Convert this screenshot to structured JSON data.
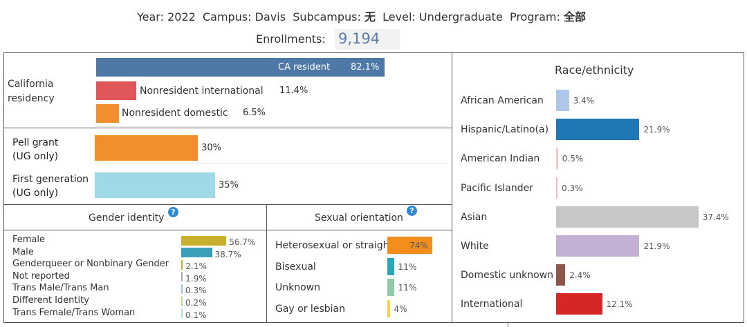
{
  "header": {
    "year_label": "Year:",
    "year": "2022",
    "campus_label": "Campus:",
    "campus": "Davis",
    "subcampus_label": "Subcampus:",
    "subcampus": "无",
    "level_label": "Level:",
    "level": "Undergraduate",
    "program_label": "Program:",
    "program": "全部",
    "enrollments_label": "Enrollments:",
    "enrollments": "9,194"
  },
  "colors": {
    "ca_resident": "#4e79a7",
    "nonres_intl": "#e15759",
    "nonres_dom": "#f28e2b",
    "pell": "#f28e2b",
    "firstgen": "#a0d8e8",
    "race": [
      "#aec7e8",
      "#1f77b4",
      "#f7c6c7",
      "#f7b6d2",
      "#c7c7c7",
      "#c5b0d5",
      "#8c564b",
      "#d62728"
    ],
    "gender": [
      "#c9b02c",
      "#3a9fb8",
      "#c9b02c",
      "#aaaaaa",
      "#9ecae1",
      "#b2df8a",
      "#b0e0e6"
    ],
    "orientation": [
      "#f28e1c",
      "#2aa6b8",
      "#8fc9a8",
      "#f0d54a"
    ]
  },
  "chart_data": [
    {
      "type": "bar",
      "title": "California residency",
      "categories": [
        "CA resident",
        "Nonresident international",
        "Nonresident domestic"
      ],
      "values": [
        82.1,
        11.4,
        6.5
      ],
      "labels": [
        "82.1%",
        "11.4%",
        "6.5%"
      ],
      "xlim": [
        0,
        100
      ]
    },
    {
      "type": "bar",
      "title": "",
      "categories": [
        "Pell grant (UG only)",
        "First generation (UG only)"
      ],
      "values": [
        30,
        35
      ],
      "labels": [
        "30%",
        "35%"
      ],
      "xlim": [
        0,
        100
      ]
    },
    {
      "type": "bar",
      "title": "Gender identity",
      "categories": [
        "Female",
        "Male",
        "Genderqueer or Nonbinary Gender",
        "Not reported",
        "Trans Male/Trans Man",
        "Different Identity",
        "Trans Female/Trans Woman"
      ],
      "values": [
        56.7,
        38.7,
        2.1,
        1.9,
        0.3,
        0.2,
        0.1
      ],
      "labels": [
        "56.7%",
        "38.7%",
        "2.1%",
        "1.9%",
        "0.3%",
        "0.2%",
        "0.1%"
      ],
      "xlim": [
        0,
        100
      ]
    },
    {
      "type": "bar",
      "title": "Sexual orientation",
      "categories": [
        "Heterosexual or straigh",
        "Bisexual",
        "Unknown",
        "Gay or lesbian"
      ],
      "values": [
        74,
        11,
        11,
        4
      ],
      "labels": [
        "74%",
        "11%",
        "11%",
        "4%"
      ],
      "xlim": [
        0,
        100
      ]
    },
    {
      "type": "bar",
      "title": "Race/ethnicity",
      "categories": [
        "African American",
        "Hispanic/Latino(a)",
        "American Indian",
        "Pacific Islander",
        "Asian",
        "White",
        "Domestic unknown",
        "International"
      ],
      "values": [
        3.4,
        21.9,
        0.5,
        0.3,
        37.4,
        21.9,
        2.4,
        12.1
      ],
      "labels": [
        "3.4%",
        "21.9%",
        "0.5%",
        "0.3%",
        "37.4%",
        "21.9%",
        "2.4%",
        "12.1%"
      ],
      "xlim": [
        0,
        40
      ]
    }
  ],
  "residency": {
    "label_line1": "California",
    "label_line2": "residency"
  },
  "pell": {
    "label_line1": "Pell grant",
    "label_line2": "(UG only)"
  },
  "firstgen": {
    "label_line1": "First generation",
    "label_line2": "(UG only)"
  },
  "icons": {
    "help": "question-mark-icon"
  }
}
